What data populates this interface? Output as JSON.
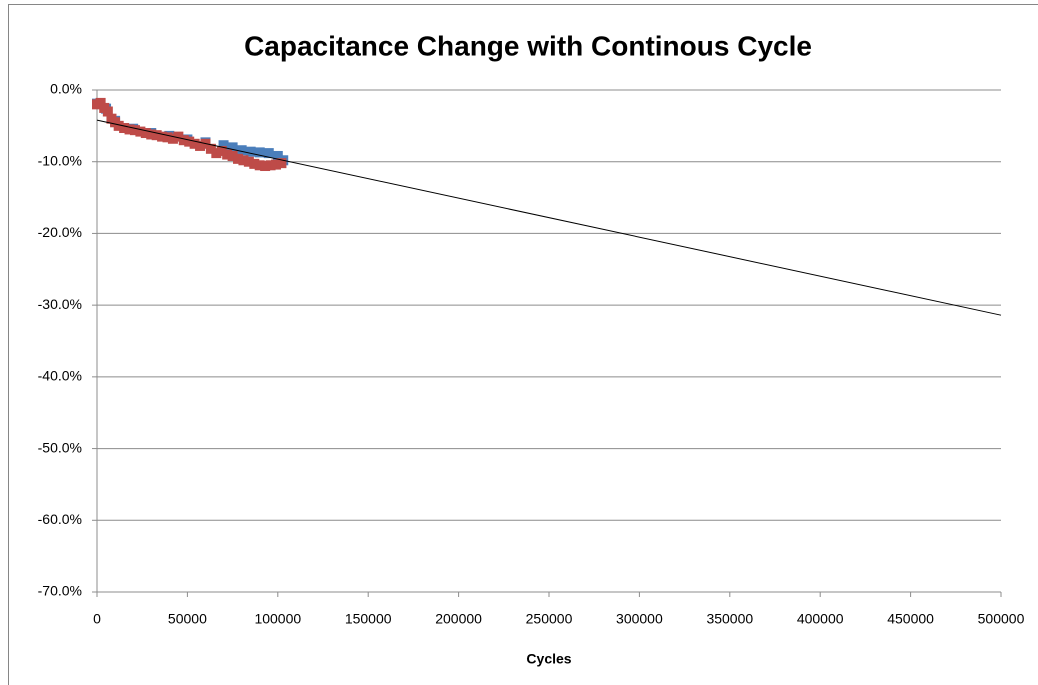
{
  "chart_data": {
    "type": "scatter",
    "title": "Capacitance Change with Continous Cycle",
    "x_label": "Cycles",
    "xlim": [
      0,
      500000
    ],
    "xticks": [
      0,
      50000,
      100000,
      150000,
      200000,
      250000,
      300000,
      350000,
      400000,
      450000,
      500000
    ],
    "ylim": [
      -70,
      0
    ],
    "yticks": [
      {
        "value": 0,
        "label": "0.0%"
      },
      {
        "value": -10,
        "label": "-10.0%"
      },
      {
        "value": -20,
        "label": "-20.0%"
      },
      {
        "value": -30,
        "label": "-30.0%"
      },
      {
        "value": -40,
        "label": "-40.0%"
      },
      {
        "value": -50,
        "label": "-50.0%"
      },
      {
        "value": -60,
        "label": "-60.0%"
      },
      {
        "value": -70,
        "label": "-70.0%"
      }
    ],
    "grid": true,
    "series": [
      {
        "color": "#4a7ebb",
        "x": [
          0,
          5000,
          10000,
          20000,
          30000,
          40000,
          50000,
          60000,
          70000,
          75000,
          80000,
          85000,
          90000,
          95000,
          100000,
          103000
        ],
        "values": [
          -1.9,
          -2.6,
          -4.3,
          -5.4,
          -6.0,
          -6.4,
          -6.9,
          -7.3,
          -7.7,
          -8.0,
          -8.4,
          -8.6,
          -8.7,
          -8.8,
          -9.2,
          -9.8
        ]
      },
      {
        "color": "#be4b48",
        "x": [
          0,
          2000,
          4000,
          6000,
          8000,
          10000,
          12000,
          15000,
          18000,
          21000,
          24000,
          27000,
          30000,
          33000,
          36000,
          39000,
          42000,
          45000,
          48000,
          51000,
          54000,
          57000,
          60000,
          63000,
          66000,
          69000,
          72000,
          75000,
          78000,
          81000,
          84000,
          87000,
          90000,
          93000,
          96000,
          99000,
          102000
        ],
        "values": [
          -2.0,
          -1.8,
          -2.5,
          -3.0,
          -4.0,
          -4.5,
          -5.0,
          -5.3,
          -5.5,
          -5.6,
          -5.8,
          -6.0,
          -6.2,
          -6.3,
          -6.5,
          -6.6,
          -6.8,
          -6.5,
          -7.0,
          -7.2,
          -7.5,
          -7.8,
          -7.5,
          -8.2,
          -8.8,
          -8.5,
          -9.0,
          -9.2,
          -9.6,
          -9.8,
          -10.0,
          -10.3,
          -10.5,
          -10.6,
          -10.5,
          -10.4,
          -10.2
        ]
      }
    ],
    "trendline": {
      "color": "#000000",
      "x": [
        0,
        500000
      ],
      "values": [
        -4.2,
        -31.4
      ]
    }
  }
}
